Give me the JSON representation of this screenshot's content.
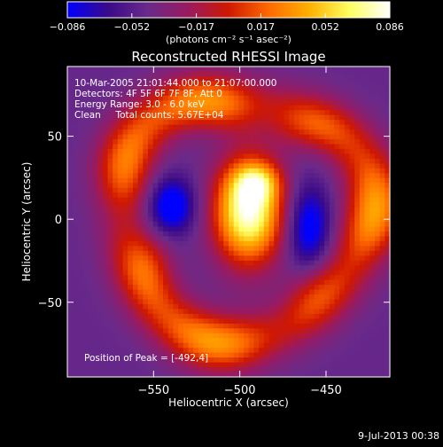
{
  "chart_data": {
    "type": "heatmap",
    "title": "Reconstructed RHESSI Image",
    "colorbar": {
      "range": [
        -0.086,
        0.086
      ],
      "tick_labels": [
        "−0.086",
        "−0.052",
        "−0.017",
        "0.017",
        "0.052",
        "0.086"
      ],
      "unit_label": "(photons cm⁻² s⁻¹ asec⁻²)",
      "colors": [
        "#0000ff",
        "#3a0a8a",
        "#6a2a8a",
        "#9a1a60",
        "#d01800",
        "#ff6a00",
        "#ffb000",
        "#ffff60",
        "#ffffff"
      ]
    },
    "xlabel": "Heliocentric X (arcsec)",
    "ylabel": "Heliocentric Y (arcsec)",
    "xlim": [
      -600,
      -413
    ],
    "ylim": [
      -95,
      92
    ],
    "x_ticks": [
      {
        "value": -550,
        "label": "−550"
      },
      {
        "value": -500,
        "label": "−500"
      },
      {
        "value": -450,
        "label": "−450"
      }
    ],
    "y_ticks": [
      {
        "value": 50,
        "label": "50"
      },
      {
        "value": 0,
        "label": "0"
      },
      {
        "value": -50,
        "label": "−50"
      }
    ],
    "annotations": [
      "10-Mar-2005 21:01:44.000 to 21:07:00.000",
      "Detectors: 4F 5F 6F 7F 8F, Att 0",
      "Energy Range: 3.0 - 6.0 keV",
      "Clean     Total counts: 5.67E+04"
    ],
    "peak_label": "Position of Peak = [-492,4]",
    "peak": {
      "x": -492,
      "y": 4,
      "value": 0.086
    },
    "background_level": -0.045,
    "features": [
      {
        "name": "core",
        "x": -495,
        "y": 5,
        "sx": 14,
        "sy": 22,
        "amp": 0.13
      },
      {
        "name": "core-knob",
        "x": -490,
        "y": 22,
        "sx": 9,
        "sy": 8,
        "amp": 0.05
      },
      {
        "name": "ring",
        "cx": -498,
        "cy": 2,
        "r": 72,
        "width": 12,
        "amp": 0.085
      },
      {
        "name": "dip-left",
        "x": -540,
        "y": 8,
        "sx": 10,
        "sy": 12,
        "amp": -0.055
      },
      {
        "name": "dip-right",
        "x": -460,
        "y": -5,
        "sx": 9,
        "sy": 18,
        "amp": -0.05
      }
    ]
  },
  "timestamp": "9-Jul-2013 00:38"
}
